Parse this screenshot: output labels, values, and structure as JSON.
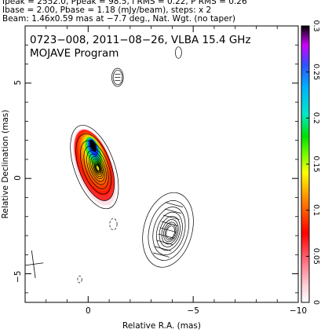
{
  "header": {
    "line1": "Ipeak = 2552.0, Ppeak = 98.5, I RMS = 0.22, P RMS = 0.26",
    "line2": "Ibase = 2.00, Pbase = 1.18 (mJy/beam), steps: x 2",
    "line3": "Beam: 1.46x0.59 mas at −7.7 deg., Nat. Wgt. (no taper)"
  },
  "chart_data": {
    "type": "contour",
    "title": "0723−008, 2011−08−26, VLBA 15.4 GHz",
    "subtitle": "MOJAVE Program",
    "xlabel": "Relative R.A. (mas)",
    "ylabel": "Relative Declination (mas)",
    "xlim": [
      3,
      -10
    ],
    "ylim": [
      -6.5,
      8
    ],
    "xticks": [
      0,
      -5,
      -10
    ],
    "xtick_labels": [
      "0",
      "−5",
      "−10"
    ],
    "yticks": [
      -5,
      0,
      5
    ],
    "ytick_labels": [
      "−5",
      "0",
      "5"
    ],
    "colorbar": {
      "min": 0,
      "max": 0.3,
      "ticks": [
        0,
        0.05,
        0.1,
        0.15,
        0.2,
        0.25,
        0.3
      ],
      "tick_labels": [
        "0",
        "0.05",
        "0.1",
        "0.15",
        "0.2",
        "0.25",
        "0.3"
      ]
    },
    "components": [
      {
        "name": "core",
        "x": -0.3,
        "y": 0.6,
        "a": 1.9,
        "b": 4.6,
        "pa_deg": -20,
        "levels": 13,
        "polarized": true
      },
      {
        "name": "jet-knot",
        "x": -3.8,
        "y": -2.7,
        "a": 2.3,
        "b": 4.0,
        "pa_deg": 15,
        "levels": 9,
        "polarized": false
      },
      {
        "name": "north-blob",
        "x": -1.4,
        "y": 5.3,
        "a": 0.55,
        "b": 0.95,
        "pa_deg": 0,
        "levels": 2,
        "polarized": false
      },
      {
        "name": "far-north-blob",
        "x": -4.3,
        "y": 6.6,
        "a": 0.3,
        "b": 0.6,
        "pa_deg": 0,
        "levels": 1,
        "polarized": false
      },
      {
        "name": "dashed-neg-1",
        "x": -1.2,
        "y": -2.4,
        "a": 0.35,
        "b": 0.6,
        "pa_deg": 0,
        "levels": 1,
        "dashed": true
      },
      {
        "name": "dashed-neg-2",
        "x": 0.4,
        "y": -5.3,
        "a": 0.2,
        "b": 0.35,
        "pa_deg": 0,
        "levels": 1,
        "dashed": true
      }
    ],
    "beam": {
      "x": 2.6,
      "y": -4.5,
      "major_mas": 1.46,
      "minor_mas": 0.59,
      "pa_deg": -7.7
    }
  }
}
